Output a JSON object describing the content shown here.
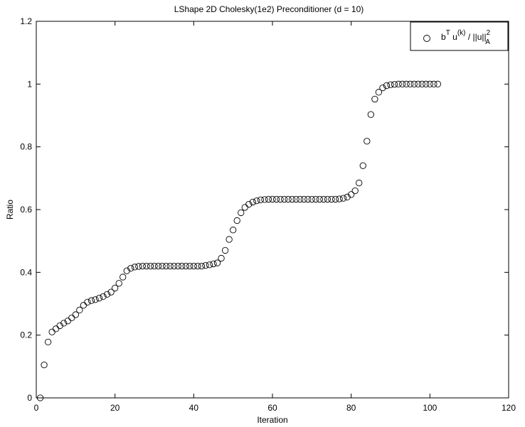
{
  "chart_data": {
    "type": "scatter",
    "title": "LShape  2D  Cholesky(1e2) Preconditioner (d = 10)",
    "xlabel": "Iteration",
    "ylabel": "Ratio",
    "xlim": [
      0,
      120
    ],
    "ylim": [
      0,
      1.2
    ],
    "xticks": [
      "0",
      "20",
      "40",
      "60",
      "80",
      "100",
      "120"
    ],
    "yticks": [
      "0",
      "0.2",
      "0.4",
      "0.6",
      "0.8",
      "1",
      "1.2"
    ],
    "grid": false,
    "legend_position": "top-right",
    "legend": {
      "base": "b",
      "sup1": "T",
      "mid": " u",
      "sup2": "(k)",
      "rest": " / ||u||",
      "sup3": "2",
      "sub": "A"
    },
    "series": [
      {
        "marker": "circle",
        "x": [
          1,
          2,
          3,
          4,
          5,
          6,
          7,
          8,
          9,
          10,
          11,
          12,
          13,
          14,
          15,
          16,
          17,
          18,
          19,
          20,
          21,
          22,
          23,
          24,
          25,
          26,
          27,
          28,
          29,
          30,
          31,
          32,
          33,
          34,
          35,
          36,
          37,
          38,
          39,
          40,
          41,
          42,
          43,
          44,
          45,
          46,
          47,
          48,
          49,
          50,
          51,
          52,
          53,
          54,
          55,
          56,
          57,
          58,
          59,
          60,
          61,
          62,
          63,
          64,
          65,
          66,
          67,
          68,
          69,
          70,
          71,
          72,
          73,
          74,
          75,
          76,
          77,
          78,
          79,
          80,
          81,
          82,
          83,
          84,
          85,
          86,
          87,
          88,
          89,
          90,
          91,
          92,
          93,
          94,
          95,
          96,
          97,
          98,
          99,
          100,
          101,
          102
        ],
        "y": [
          0.0,
          0.105,
          0.178,
          0.21,
          0.22,
          0.23,
          0.238,
          0.245,
          0.255,
          0.265,
          0.28,
          0.295,
          0.305,
          0.31,
          0.313,
          0.318,
          0.323,
          0.33,
          0.337,
          0.35,
          0.365,
          0.385,
          0.405,
          0.413,
          0.417,
          0.419,
          0.42,
          0.42,
          0.42,
          0.42,
          0.42,
          0.42,
          0.42,
          0.42,
          0.42,
          0.42,
          0.42,
          0.42,
          0.42,
          0.42,
          0.42,
          0.42,
          0.422,
          0.424,
          0.427,
          0.43,
          0.445,
          0.47,
          0.505,
          0.535,
          0.565,
          0.59,
          0.607,
          0.617,
          0.624,
          0.628,
          0.631,
          0.632,
          0.633,
          0.633,
          0.633,
          0.633,
          0.633,
          0.633,
          0.633,
          0.633,
          0.633,
          0.633,
          0.633,
          0.633,
          0.633,
          0.633,
          0.633,
          0.633,
          0.633,
          0.633,
          0.634,
          0.636,
          0.64,
          0.648,
          0.66,
          0.685,
          0.74,
          0.818,
          0.903,
          0.952,
          0.974,
          0.988,
          0.995,
          0.998,
          0.999,
          1.0,
          1.0,
          1.0,
          1.0,
          1.0,
          1.0,
          1.0,
          1.0,
          1.0,
          1.0,
          1.0
        ]
      }
    ]
  }
}
